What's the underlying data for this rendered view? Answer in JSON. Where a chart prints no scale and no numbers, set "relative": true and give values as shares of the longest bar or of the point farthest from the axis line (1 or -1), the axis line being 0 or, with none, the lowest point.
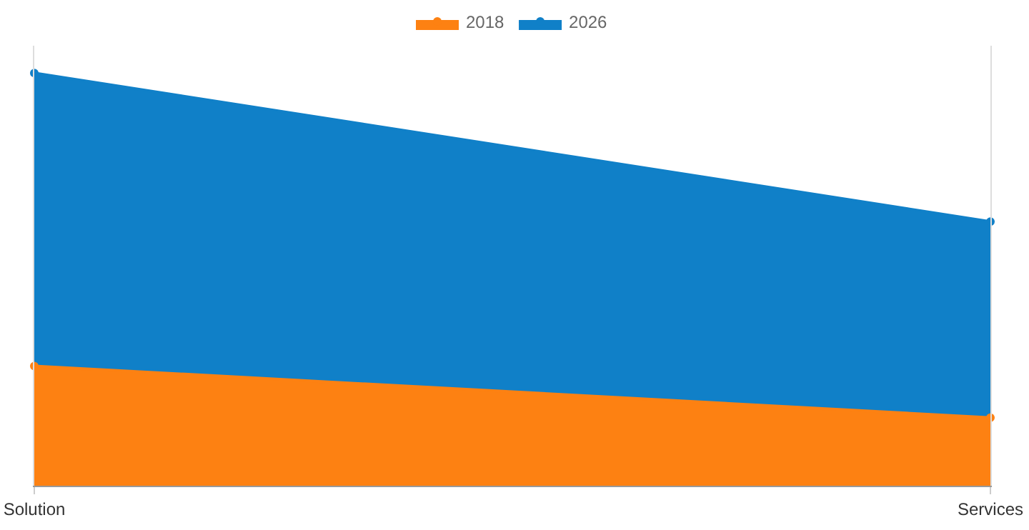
{
  "chart_data": {
    "type": "area",
    "relative": true,
    "categories": [
      "Solution",
      "Services"
    ],
    "series": [
      {
        "name": "2018",
        "color": "#fd8112",
        "values": [
          0.29,
          0.165
        ]
      },
      {
        "name": "2026",
        "color": "#1080c8",
        "values": [
          1,
          0.64
        ]
      }
    ],
    "grid": "x",
    "legend": "top",
    "marker": "circle",
    "line_style": "solid"
  }
}
